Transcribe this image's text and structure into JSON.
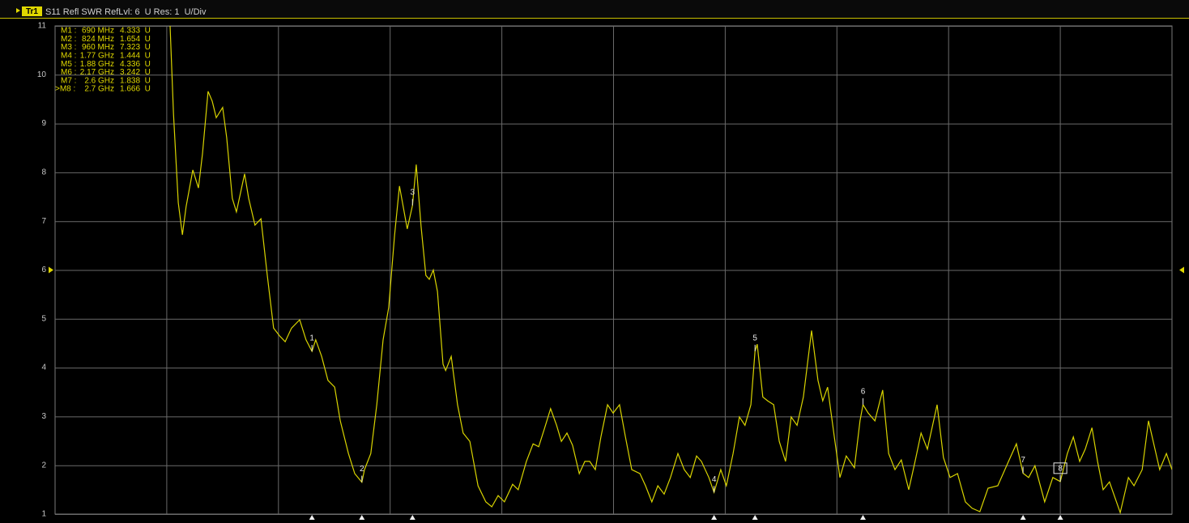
{
  "chart_data": {
    "type": "line",
    "title": "S11 Refl SWR RefLvl: 6  U Res: 1  U/Div",
    "trace_tag": "Tr1",
    "ylim": [
      1,
      11
    ],
    "yticks": [
      1,
      2,
      3,
      4,
      5,
      6,
      7,
      8,
      9,
      10,
      11
    ],
    "xlim": [
      0,
      3000
    ],
    "x_grid_divisions": 10,
    "grid": true,
    "ref_level": 6,
    "x": [
      309,
      318,
      331,
      342,
      352,
      370,
      385,
      396,
      411,
      422,
      433,
      450,
      461,
      476,
      487,
      509,
      520,
      537,
      553,
      570,
      587,
      603,
      618,
      635,
      657,
      674,
      690,
      700,
      716,
      733,
      751,
      766,
      788,
      805,
      824,
      831,
      848,
      864,
      881,
      896,
      912,
      925,
      935,
      946,
      960,
      970,
      983,
      996,
      1005,
      1016,
      1027,
      1042,
      1049,
      1064,
      1081,
      1096,
      1114,
      1136,
      1157,
      1173,
      1190,
      1207,
      1229,
      1244,
      1266,
      1284,
      1299,
      1314,
      1331,
      1347,
      1360,
      1375,
      1390,
      1408,
      1423,
      1436,
      1451,
      1466,
      1484,
      1499,
      1516,
      1532,
      1549,
      1571,
      1586,
      1603,
      1619,
      1636,
      1653,
      1673,
      1690,
      1706,
      1723,
      1736,
      1756,
      1770,
      1788,
      1803,
      1821,
      1838,
      1853,
      1869,
      1880,
      1886,
      1901,
      1914,
      1930,
      1945,
      1962,
      1977,
      1993,
      2010,
      2032,
      2049,
      2062,
      2075,
      2093,
      2108,
      2125,
      2147,
      2162,
      2170,
      2184,
      2202,
      2223,
      2239,
      2256,
      2273,
      2293,
      2310,
      2326,
      2343,
      2369,
      2386,
      2404,
      2424,
      2445,
      2463,
      2484,
      2506,
      2532,
      2561,
      2582,
      2600,
      2615,
      2632,
      2658,
      2680,
      2700,
      2719,
      2735,
      2752,
      2767,
      2785,
      2800,
      2815,
      2832,
      2861,
      2883,
      2898,
      2920,
      2937,
      2952,
      2967,
      2985,
      3000
    ],
    "series": [
      {
        "color": "#d9d400",
        "values": [
          11,
          9.2,
          7.38,
          6.72,
          7.3,
          8.05,
          7.68,
          8.38,
          9.66,
          9.46,
          9.12,
          9.33,
          8.71,
          7.47,
          7.19,
          7.97,
          7.47,
          6.92,
          7.05,
          5.89,
          4.81,
          4.65,
          4.53,
          4.81,
          4.98,
          4.57,
          4.333,
          4.57,
          4.23,
          3.74,
          3.6,
          2.91,
          2.24,
          1.83,
          1.654,
          1.91,
          2.24,
          3.24,
          4.57,
          5.23,
          6.72,
          7.72,
          7.3,
          6.84,
          7.323,
          8.16,
          6.89,
          5.89,
          5.81,
          6.0,
          5.56,
          4.07,
          3.94,
          4.23,
          3.24,
          2.66,
          2.49,
          1.58,
          1.25,
          1.15,
          1.38,
          1.25,
          1.61,
          1.5,
          2.08,
          2.44,
          2.38,
          2.74,
          3.16,
          2.82,
          2.49,
          2.66,
          2.41,
          1.83,
          2.08,
          2.08,
          1.91,
          2.58,
          3.24,
          3.07,
          3.24,
          2.58,
          1.91,
          1.83,
          1.58,
          1.25,
          1.58,
          1.41,
          1.75,
          2.24,
          1.91,
          1.75,
          2.19,
          2.08,
          1.75,
          1.444,
          1.91,
          1.58,
          2.24,
          2.99,
          2.82,
          3.24,
          4.336,
          4.48,
          3.4,
          3.32,
          3.24,
          2.49,
          2.08,
          2.99,
          2.82,
          3.4,
          4.76,
          3.74,
          3.32,
          3.6,
          2.58,
          1.75,
          2.19,
          1.95,
          2.91,
          3.242,
          3.07,
          2.91,
          3.54,
          2.24,
          1.91,
          2.11,
          1.5,
          2.08,
          2.66,
          2.33,
          3.24,
          2.16,
          1.75,
          1.83,
          1.25,
          1.12,
          1.05,
          1.53,
          1.58,
          2.08,
          2.44,
          1.838,
          1.75,
          1.99,
          1.25,
          1.75,
          1.666,
          2.24,
          2.58,
          2.08,
          2.33,
          2.77,
          2.08,
          1.5,
          1.66,
          1.03,
          1.75,
          1.58,
          1.91,
          2.91,
          2.41,
          1.91,
          2.24,
          1.91
        ]
      }
    ],
    "markers": [
      {
        "name": "M1 :",
        "freq": 690,
        "freq_label": "690 MHz",
        "value": 4.333,
        "value_label": "4.333  U",
        "trace_label": "1"
      },
      {
        "name": "M2 :",
        "freq": 824,
        "freq_label": "824 MHz",
        "value": 1.654,
        "value_label": "1.654  U",
        "trace_label": "2"
      },
      {
        "name": "M3 :",
        "freq": 960,
        "freq_label": "960 MHz",
        "value": 7.323,
        "value_label": "7.323  U",
        "trace_label": "3"
      },
      {
        "name": "M4 :",
        "freq": 1770,
        "freq_label": "1.77 GHz",
        "value": 1.444,
        "value_label": "1.444  U",
        "trace_label": "4"
      },
      {
        "name": "M5 :",
        "freq": 1880,
        "freq_label": "1.88 GHz",
        "value": 4.336,
        "value_label": "4.336  U",
        "trace_label": "5"
      },
      {
        "name": "M6 :",
        "freq": 2170,
        "freq_label": "2.17 GHz",
        "value": 3.242,
        "value_label": "3.242  U",
        "trace_label": "6"
      },
      {
        "name": "M7 :",
        "freq": 2600,
        "freq_label": "2.6 GHz",
        "value": 1.838,
        "value_label": "1.838  U",
        "trace_label": "7"
      },
      {
        "name": ">M8 :",
        "freq": 2700,
        "freq_label": "2.7 GHz",
        "value": 1.666,
        "value_label": "1.666  U",
        "trace_label": "8",
        "active": true
      }
    ]
  }
}
